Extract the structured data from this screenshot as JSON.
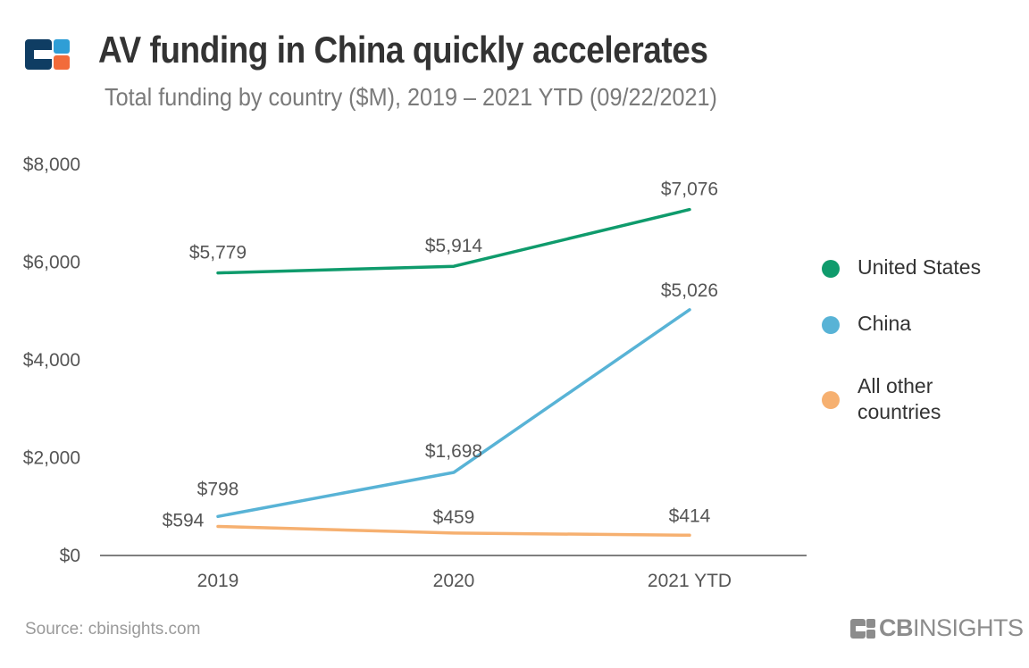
{
  "header": {
    "title": "AV funding in China quickly accelerates",
    "subtitle": "Total funding by country ($M), 2019 – 2021 YTD (09/22/2021)"
  },
  "footer": {
    "source": "Source: cbinsights.com",
    "brand_bold": "CB",
    "brand_light": "INSIGHTS"
  },
  "chart_data": {
    "type": "line",
    "title": "AV funding in China quickly accelerates",
    "subtitle": "Total funding by country ($M), 2019 – 2021 YTD (09/22/2021)",
    "categories": [
      "2019",
      "2020",
      "2021 YTD"
    ],
    "ylim": [
      0,
      8000
    ],
    "yticks": [
      0,
      2000,
      4000,
      6000,
      8000
    ],
    "ytick_labels": [
      "$0",
      "$2,000",
      "$4,000",
      "$6,000",
      "$8,000"
    ],
    "grid": false,
    "legend_position": "right",
    "series": [
      {
        "name": "United States",
        "color": "#0f9b6c",
        "values": [
          5779,
          5914,
          7076
        ],
        "labels": [
          "$5,779",
          "$5,914",
          "$7,076"
        ]
      },
      {
        "name": "China",
        "color": "#58b3d6",
        "values": [
          798,
          1698,
          5026
        ],
        "labels": [
          "$798",
          "$1,698",
          "$5,026"
        ]
      },
      {
        "name": "All other countries",
        "color": "#f6b070",
        "values": [
          594,
          459,
          414
        ],
        "labels": [
          "$594",
          "$459",
          "$414"
        ]
      }
    ]
  },
  "colors": {
    "logo_navy": "#0f3d63",
    "logo_orange": "#f26b3a",
    "logo_blue": "#2f9ed6",
    "brand_gray": "#8c8c8c"
  }
}
